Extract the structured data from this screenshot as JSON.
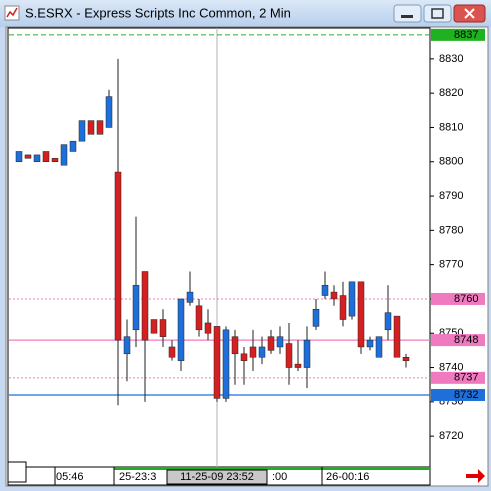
{
  "chart_data": {
    "type": "candlestick",
    "title": "S.ESRX - Express Scripts Inc Common, 2 Min",
    "categories": [
      null,
      null,
      null,
      null,
      "05:46",
      null,
      null,
      null,
      null,
      null,
      null,
      "25-23:3",
      null,
      null,
      null,
      null,
      null,
      null,
      null,
      null,
      null,
      null,
      null,
      null,
      null,
      null,
      null,
      null,
      ":00",
      null,
      null,
      null,
      null,
      null,
      "26-00:16",
      null,
      null,
      null,
      null,
      null,
      null,
      null,
      null,
      null
    ],
    "open": [
      8800,
      8802,
      8800,
      8803,
      8801,
      8799,
      8803,
      8806,
      8812,
      8812,
      8810,
      8797,
      8744,
      8751,
      8768,
      8754,
      8754,
      8746,
      8742,
      8759,
      8758,
      8753,
      8752,
      8731,
      8749,
      8744,
      8746,
      8743,
      8749,
      8746,
      8747,
      8741,
      8740,
      8752,
      8761,
      8762,
      8761,
      8755,
      8765,
      8746,
      8743,
      8751,
      8755,
      8743
    ],
    "high": [
      8803,
      8802,
      8802,
      8803,
      8801,
      8805,
      8806,
      8812,
      8812,
      8812,
      8821,
      8830,
      8754,
      8784,
      8768,
      8754,
      8757,
      8748,
      8760,
      8768,
      8760,
      8757,
      8752,
      8752,
      8751,
      8746,
      8751,
      8749,
      8751,
      8752,
      8753,
      8748,
      8752,
      8760,
      8768,
      8764,
      8765,
      8765,
      8765,
      8749,
      8749,
      8764,
      8755,
      8744
    ],
    "low": [
      8800,
      8801,
      8800,
      8800,
      8800,
      8799,
      8803,
      8806,
      8808,
      8808,
      8810,
      8729,
      8736,
      8746,
      8730,
      8750,
      8746,
      8742,
      8739,
      8758,
      8749,
      8748,
      8730,
      8730,
      8735,
      8735,
      8739,
      8741,
      8744,
      8744,
      8735,
      8739,
      8734,
      8751,
      8760,
      8758,
      8752,
      8754,
      8744,
      8745,
      8743,
      8748,
      8743,
      8740
    ],
    "close": [
      8803,
      8801,
      8802,
      8800,
      8800,
      8805,
      8806,
      8812,
      8808,
      8808,
      8819,
      8748,
      8749,
      8764,
      8748,
      8750,
      8749,
      8743,
      8760,
      8762,
      8751,
      8750,
      8731,
      8751,
      8744,
      8742,
      8743,
      8746,
      8745,
      8749,
      8740,
      8740,
      8748,
      8757,
      8764,
      8760,
      8754,
      8765,
      8746,
      8748,
      8749,
      8756,
      8743,
      8742
    ],
    "up_color": "#1e6fd9",
    "down_color": "#d42020",
    "ylim": [
      8711,
      8839
    ],
    "yticks": [
      8720,
      8730,
      8740,
      8750,
      8760,
      8770,
      8780,
      8790,
      8800,
      8810,
      8820,
      8830
    ],
    "levels": [
      {
        "value": 8837,
        "color": "#1fb11f",
        "style": "dashed"
      },
      {
        "value": 8760,
        "color": "#f07ac0",
        "style": "dotted"
      },
      {
        "value": 8748,
        "color": "#f07ac0",
        "style": "solid"
      },
      {
        "value": 8737,
        "color": "#f07ac0",
        "style": "dotted"
      },
      {
        "value": 8732,
        "color": "#1e6fd9",
        "style": "solid"
      }
    ],
    "crosshair_label": "11-25-09 23:52"
  }
}
